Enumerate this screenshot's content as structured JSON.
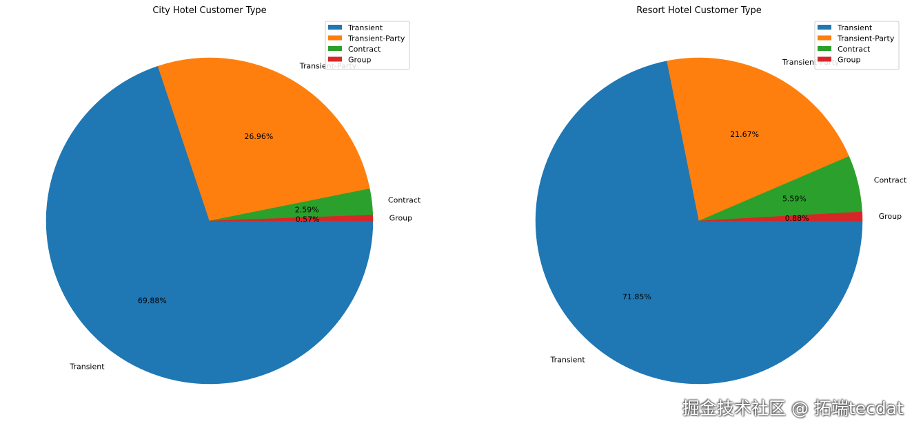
{
  "chart_data": [
    {
      "type": "pie",
      "title": "City Hotel Customer Type",
      "categories": [
        "Transient",
        "Transient-Party",
        "Contract",
        "Group"
      ],
      "values": [
        69.88,
        26.96,
        2.59,
        0.57
      ],
      "labels_pct": [
        "69.88%",
        "26.96%",
        "2.59%",
        "0.57%"
      ],
      "colors": [
        "#1f77b4",
        "#ff7f0e",
        "#2ca02c",
        "#d62728"
      ],
      "legend": {
        "position": "upper-right",
        "entries": [
          "Transient",
          "Transient-Party",
          "Contract",
          "Group"
        ]
      }
    },
    {
      "type": "pie",
      "title": "Resort Hotel Customer Type",
      "categories": [
        "Transient",
        "Transient-Party",
        "Contract",
        "Group"
      ],
      "values": [
        71.85,
        21.67,
        5.59,
        0.88
      ],
      "labels_pct": [
        "71.85%",
        "21.67%",
        "5.59%",
        "0.88%"
      ],
      "colors": [
        "#1f77b4",
        "#ff7f0e",
        "#2ca02c",
        "#d62728"
      ],
      "legend": {
        "position": "upper-right",
        "entries": [
          "Transient",
          "Transient-Party",
          "Contract",
          "Group"
        ]
      }
    }
  ],
  "watermark": "掘金技术社区 @ 拓端tecdat"
}
